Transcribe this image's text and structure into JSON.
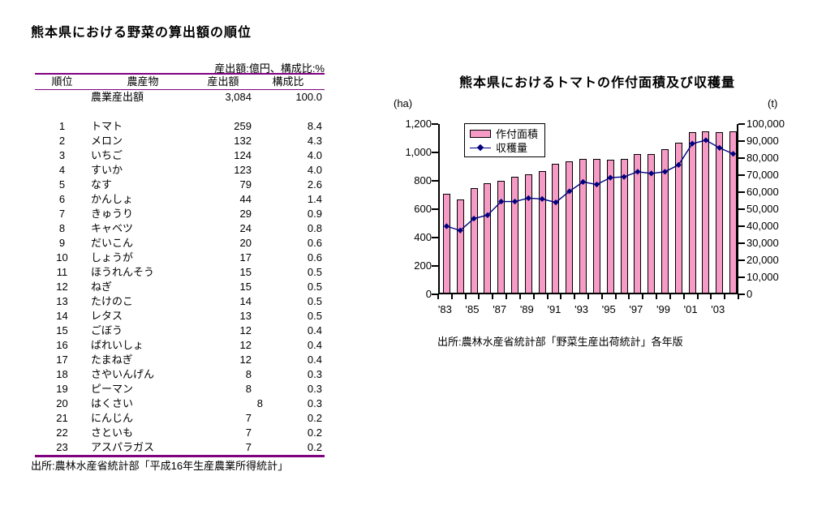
{
  "left_panel": {
    "title": "熊本県における野菜の算出額の順位",
    "unit_note": "産出額:億円、構成比:%",
    "source": "出所:農林水産省統計部「平成16年生産農業所得統計」",
    "table": {
      "border_color": "#800080",
      "headers": [
        "順位",
        "農産物",
        "産出額",
        "構成比"
      ],
      "summary_row": {
        "rank": "",
        "product": "農業産出額",
        "output": "3,084",
        "share": "100.0"
      },
      "rows": [
        {
          "rank": "1",
          "product": "トマト",
          "output": "259",
          "share": "8.4"
        },
        {
          "rank": "2",
          "product": "メロン",
          "output": "132",
          "share": "4.3"
        },
        {
          "rank": "3",
          "product": "いちご",
          "output": "124",
          "share": "4.0"
        },
        {
          "rank": "4",
          "product": "すいか",
          "output": "123",
          "share": "4.0"
        },
        {
          "rank": "5",
          "product": "なす",
          "output": "79",
          "share": "2.6"
        },
        {
          "rank": "6",
          "product": "かんしょ",
          "output": "44",
          "share": "1.4"
        },
        {
          "rank": "7",
          "product": "きゅうり",
          "output": "29",
          "share": "0.9"
        },
        {
          "rank": "8",
          "product": "キャベツ",
          "output": "24",
          "share": "0.8"
        },
        {
          "rank": "9",
          "product": "だいこん",
          "output": "20",
          "share": "0.6"
        },
        {
          "rank": "10",
          "product": "しょうが",
          "output": "17",
          "share": "0.6"
        },
        {
          "rank": "11",
          "product": "ほうれんそう",
          "output": "15",
          "share": "0.5"
        },
        {
          "rank": "12",
          "product": "ねぎ",
          "output": "15",
          "share": "0.5"
        },
        {
          "rank": "13",
          "product": "たけのこ",
          "output": "14",
          "share": "0.5"
        },
        {
          "rank": "14",
          "product": "レタス",
          "output": "13",
          "share": "0.5"
        },
        {
          "rank": "15",
          "product": "ごぼう",
          "output": "12",
          "share": "0.4"
        },
        {
          "rank": "16",
          "product": "ばれいしょ",
          "output": "12",
          "share": "0.4"
        },
        {
          "rank": "17",
          "product": "たまねぎ",
          "output": "12",
          "share": "0.4"
        },
        {
          "rank": "18",
          "product": "さやいんげん",
          "output": "8",
          "share": "0.3"
        },
        {
          "rank": "19",
          "product": "ピーマン",
          "output": "8",
          "share": "0.3"
        },
        {
          "rank": "20",
          "product": "はくさい",
          "output": "8",
          "share": "0.3",
          "output_indent": true
        },
        {
          "rank": "21",
          "product": "にんじん",
          "output": "7",
          "share": "0.2"
        },
        {
          "rank": "22",
          "product": "さといも",
          "output": "7",
          "share": "0.2"
        },
        {
          "rank": "23",
          "product": "アスパラガス",
          "output": "7",
          "share": "0.2"
        }
      ]
    }
  },
  "right_panel": {
    "title": "熊本県におけるトマトの作付面積及び収穫量",
    "left_axis_unit": "(ha)",
    "right_axis_unit": "(t)",
    "source": "出所:農林水産省統計部「野菜生産出荷統計」各年版"
  },
  "chart_data": {
    "type": "combo",
    "title": "熊本県におけるトマトの作付面積及び収穫量",
    "categories": [
      "'83",
      "'84",
      "'85",
      "'86",
      "'87",
      "'88",
      "'89",
      "'90",
      "'91",
      "'92",
      "'93",
      "'94",
      "'95",
      "'96",
      "'97",
      "'98",
      "'99",
      "'00",
      "'01",
      "'02",
      "'03",
      "'04"
    ],
    "x_label_every": 2,
    "series": [
      {
        "name": "作付面積",
        "type": "bar",
        "axis": "left",
        "unit": "ha",
        "color": "#F59BC5",
        "border_color": "#000000",
        "values": [
          695,
          660,
          735,
          770,
          790,
          815,
          835,
          855,
          910,
          925,
          945,
          945,
          935,
          945,
          975,
          980,
          1010,
          1055,
          1130,
          1140,
          1130,
          1135
        ]
      },
      {
        "name": "収穫量",
        "type": "line",
        "axis": "right",
        "unit": "t",
        "color": "#000080",
        "marker": "diamond",
        "values": [
          40000,
          37500,
          44500,
          46500,
          54500,
          54500,
          56500,
          56000,
          54000,
          60500,
          66000,
          64500,
          68500,
          69000,
          72000,
          71000,
          72000,
          76000,
          88500,
          90500,
          86000,
          82500
        ]
      }
    ],
    "left_axis": {
      "unit": "(ha)",
      "min": 0,
      "max": 1200,
      "step": 200,
      "ticks": [
        "0",
        "200",
        "400",
        "600",
        "800",
        "1,000",
        "1,200"
      ]
    },
    "right_axis": {
      "unit": "(t)",
      "min": 0,
      "max": 100000,
      "step": 10000,
      "ticks": [
        "0",
        "10,000",
        "20,000",
        "30,000",
        "40,000",
        "50,000",
        "60,000",
        "70,000",
        "80,000",
        "90,000",
        "100,000"
      ]
    },
    "legend_position": "top-left-inside",
    "grid": false
  }
}
